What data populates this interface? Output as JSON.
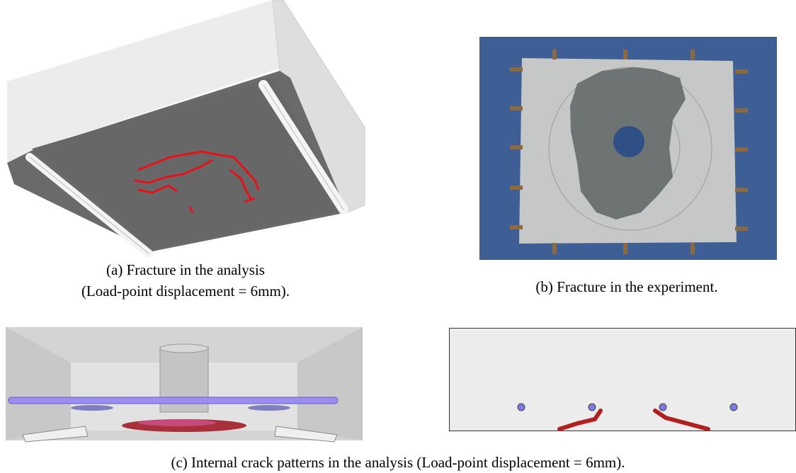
{
  "captions": {
    "a": [
      "(a) Fracture in the analysis",
      "(Load-point displacement = 6mm)."
    ],
    "b": "(b) Fracture in the experiment.",
    "c": "(c) Internal crack patterns in the analysis (Load-point displacement = 6mm)."
  }
}
